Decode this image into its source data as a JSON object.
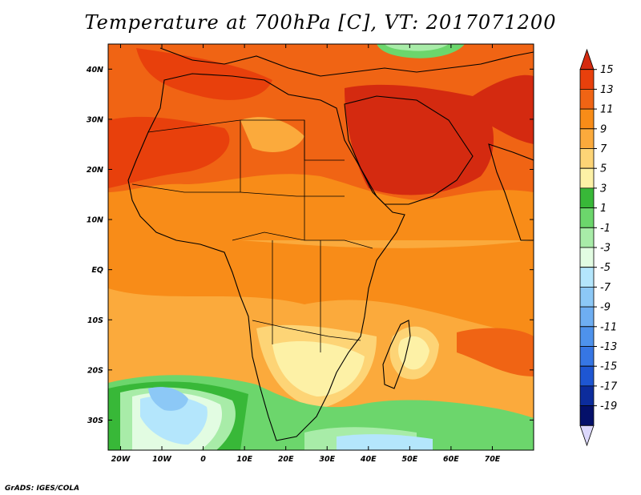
{
  "title": "Temperature at 700hPa [C], VT: 2017071200",
  "credit": "GrADS: IGES/COLA",
  "map": {
    "lon_range": [
      -23,
      80
    ],
    "lat_range": [
      -36,
      45
    ],
    "lon_ticks": [
      {
        "value": -20,
        "label": "20W"
      },
      {
        "value": -10,
        "label": "10W"
      },
      {
        "value": 0,
        "label": "0"
      },
      {
        "value": 10,
        "label": "10E"
      },
      {
        "value": 20,
        "label": "20E"
      },
      {
        "value": 30,
        "label": "30E"
      },
      {
        "value": 40,
        "label": "40E"
      },
      {
        "value": 50,
        "label": "50E"
      },
      {
        "value": 60,
        "label": "60E"
      },
      {
        "value": 70,
        "label": "70E"
      }
    ],
    "lat_ticks": [
      {
        "value": 40,
        "label": "40N"
      },
      {
        "value": 30,
        "label": "30N"
      },
      {
        "value": 20,
        "label": "20N"
      },
      {
        "value": 10,
        "label": "10N"
      },
      {
        "value": 0,
        "label": "EQ"
      },
      {
        "value": -10,
        "label": "10S"
      },
      {
        "value": -20,
        "label": "20S"
      },
      {
        "value": -30,
        "label": "30S"
      }
    ]
  },
  "colorbar": {
    "labels": [
      "15",
      "13",
      "11",
      "9",
      "7",
      "5",
      "3",
      "1",
      "-1",
      "-3",
      "-5",
      "-7",
      "-9",
      "-11",
      "-13",
      "-15",
      "-17",
      "-19"
    ],
    "colors": [
      "#d42a10",
      "#e8400c",
      "#f06414",
      "#f88c18",
      "#fbaa3c",
      "#fdd476",
      "#fdf1a6",
      "#38b838",
      "#6cd66c",
      "#a8eca8",
      "#e2fce2",
      "#b4e6fc",
      "#8cc8f6",
      "#6eaef2",
      "#4e92ec",
      "#3676e4",
      "#1e56d2",
      "#0c2c9c",
      "#04106a",
      "#dcd8fc"
    ]
  }
}
